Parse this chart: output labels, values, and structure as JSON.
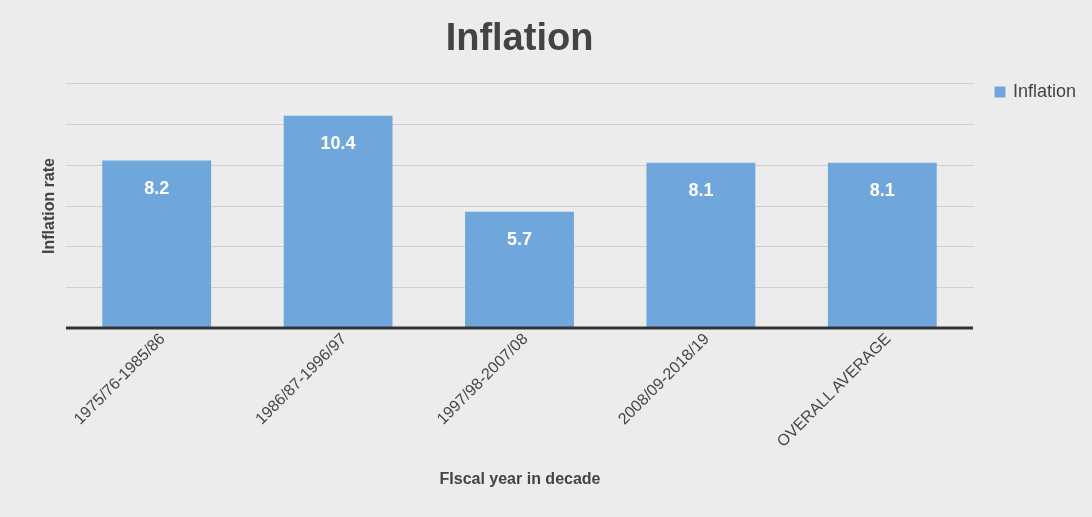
{
  "chart_data": {
    "type": "bar",
    "title": "Inflation",
    "xlabel": "FIscal year in decade",
    "ylabel": "Inflation rate",
    "categories": [
      "1975/76-1985/86",
      "1986/87-1996/97",
      "1997/98-2007/08",
      "2008/09-2018/19",
      "OVERALL AVERAGE"
    ],
    "series": [
      {
        "name": "Inflation",
        "color": "#6fa6dc",
        "values": [
          8.2,
          10.4,
          5.7,
          8.1,
          8.1
        ]
      }
    ],
    "ylim": [
      0,
      12
    ],
    "yticks": [
      {
        "value": 0,
        "label": null
      },
      {
        "value": 2,
        "label": null
      },
      {
        "value": 4,
        "label": null
      },
      {
        "value": 6,
        "label": null
      },
      {
        "value": 8,
        "label": null
      },
      {
        "value": 10,
        "label": null
      },
      {
        "value": 12,
        "label": null
      }
    ],
    "tick_labels": "x",
    "grid": "y",
    "legend": "right",
    "data_labels": true
  }
}
